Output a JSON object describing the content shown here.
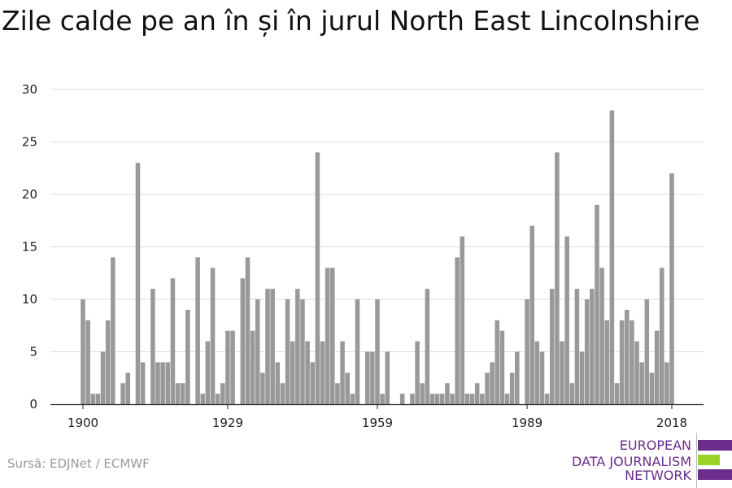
{
  "title": "Zile calde pe an în și în jurul North East Lincolnshire",
  "source": "Sursă: EDJNet / ECMWF",
  "logo": {
    "lines": [
      "EUROPEAN",
      "DATA JOURNALISM",
      "NETWORK"
    ],
    "colors": {
      "purple": "#6b2d8c",
      "green": "#9bd32a"
    }
  },
  "chart_data": {
    "type": "bar",
    "title": "Zile calde pe an în și în jurul North East Lincolnshire",
    "xlabel": "",
    "ylabel": "",
    "x_start": 1900,
    "x_end": 2018,
    "xticks": [
      1900,
      1929,
      1959,
      1989,
      2018
    ],
    "yticks": [
      0,
      5,
      10,
      15,
      20,
      25,
      30
    ],
    "ylim": [
      0,
      30
    ],
    "grid": true,
    "bar_color": "#999999",
    "values": [
      10,
      8,
      1,
      1,
      5,
      8,
      14,
      0,
      2,
      3,
      0,
      23,
      4,
      0,
      11,
      4,
      4,
      4,
      12,
      2,
      2,
      9,
      0,
      14,
      1,
      6,
      13,
      1,
      2,
      7,
      7,
      0,
      12,
      14,
      7,
      10,
      3,
      11,
      11,
      4,
      2,
      10,
      6,
      11,
      10,
      6,
      4,
      24,
      6,
      13,
      13,
      2,
      6,
      3,
      1,
      10,
      0,
      5,
      5,
      10,
      1,
      5,
      0,
      0,
      1,
      0,
      1,
      6,
      2,
      11,
      1,
      1,
      1,
      2,
      1,
      14,
      16,
      1,
      1,
      2,
      1,
      3,
      4,
      8,
      7,
      1,
      3,
      5,
      0,
      10,
      17,
      6,
      5,
      1,
      11,
      24,
      6,
      16,
      2,
      11,
      5,
      10,
      11,
      19,
      13,
      8,
      28,
      2,
      8,
      9,
      8,
      6,
      4,
      10,
      3,
      7,
      13,
      4,
      22
    ]
  }
}
